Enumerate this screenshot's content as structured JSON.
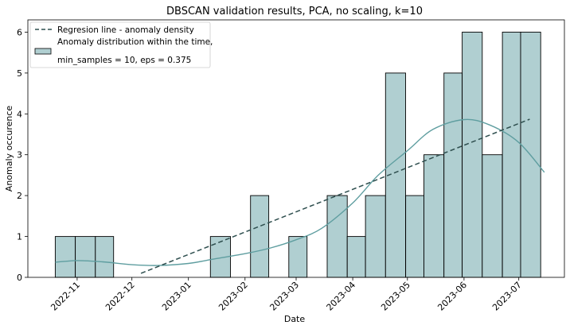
{
  "chart_data": {
    "type": "bar",
    "title": "DBSCAN validation results, PCA, no scaling, k=10",
    "xlabel": "Date",
    "ylabel": "Anomaly occurence",
    "ylim": [
      0,
      6.3
    ],
    "yticks": [
      0,
      1,
      2,
      3,
      4,
      5,
      6
    ],
    "xticks": [
      "2022-11",
      "2022-12",
      "2023-01",
      "2023-02",
      "2023-03",
      "2023-04",
      "2023-05",
      "2023-06",
      "2023-07"
    ],
    "bins": [
      {
        "start": "2022-10-20",
        "end": "2022-10-31",
        "count": 1
      },
      {
        "start": "2022-10-31",
        "end": "2022-11-11",
        "count": 1
      },
      {
        "start": "2022-11-11",
        "end": "2022-11-21",
        "count": 1
      },
      {
        "start": "2022-11-21",
        "end": "2022-12-02",
        "count": 0
      },
      {
        "start": "2022-12-02",
        "end": "2022-12-13",
        "count": 0
      },
      {
        "start": "2022-12-13",
        "end": "2022-12-23",
        "count": 0
      },
      {
        "start": "2022-12-23",
        "end": "2023-01-03",
        "count": 0
      },
      {
        "start": "2023-01-03",
        "end": "2023-01-13",
        "count": 0
      },
      {
        "start": "2023-01-13",
        "end": "2023-01-24",
        "count": 1
      },
      {
        "start": "2023-01-24",
        "end": "2023-02-04",
        "count": 0
      },
      {
        "start": "2023-02-04",
        "end": "2023-02-14",
        "count": 2
      },
      {
        "start": "2023-02-14",
        "end": "2023-02-25",
        "count": 0
      },
      {
        "start": "2023-02-25",
        "end": "2023-03-07",
        "count": 1
      },
      {
        "start": "2023-03-07",
        "end": "2023-03-18",
        "count": 0
      },
      {
        "start": "2023-03-18",
        "end": "2023-03-29",
        "count": 2
      },
      {
        "start": "2023-03-29",
        "end": "2023-04-08",
        "count": 1
      },
      {
        "start": "2023-04-08",
        "end": "2023-04-19",
        "count": 2
      },
      {
        "start": "2023-04-19",
        "end": "2023-04-30",
        "count": 5
      },
      {
        "start": "2023-04-30",
        "end": "2023-05-10",
        "count": 2
      },
      {
        "start": "2023-05-10",
        "end": "2023-05-21",
        "count": 3
      },
      {
        "start": "2023-05-21",
        "end": "2023-05-31",
        "count": 5
      },
      {
        "start": "2023-05-31",
        "end": "2023-06-11",
        "count": 6
      },
      {
        "start": "2023-06-11",
        "end": "2023-06-22",
        "count": 3
      },
      {
        "start": "2023-06-22",
        "end": "2023-07-02",
        "count": 6
      },
      {
        "start": "2023-07-02",
        "end": "2023-07-13",
        "count": 6
      }
    ],
    "kde": {
      "name": "Anomaly distribution within the time,",
      "x": [
        "2022-10-20",
        "2022-11-01",
        "2022-11-15",
        "2022-12-01",
        "2022-12-15",
        "2023-01-01",
        "2023-01-15",
        "2023-02-01",
        "2023-02-15",
        "2023-03-01",
        "2023-03-15",
        "2023-04-01",
        "2023-04-15",
        "2023-05-01",
        "2023-05-15",
        "2023-06-01",
        "2023-06-15",
        "2023-07-01",
        "2023-07-15"
      ],
      "y": [
        0.37,
        0.41,
        0.38,
        0.31,
        0.29,
        0.34,
        0.45,
        0.58,
        0.72,
        0.92,
        1.2,
        1.82,
        2.5,
        3.1,
        3.62,
        3.86,
        3.73,
        3.3,
        2.57
      ]
    },
    "regression": {
      "name": "Regresion line - anomaly density",
      "x": [
        "2022-12-06",
        "2023-07-07"
      ],
      "y": [
        0.1,
        3.87
      ]
    },
    "legend": {
      "position": "top-left",
      "entries": [
        "Regresion line - anomaly density",
        "Anomaly distribution within the time,",
        "min_samples = 10, eps = 0.375"
      ]
    },
    "colors": {
      "bar_fill": "#b0cfd1",
      "bar_edge": "#000000",
      "kde_line": "#5f9ea0",
      "regression_line": "#2f4f4f"
    },
    "grid": false
  }
}
